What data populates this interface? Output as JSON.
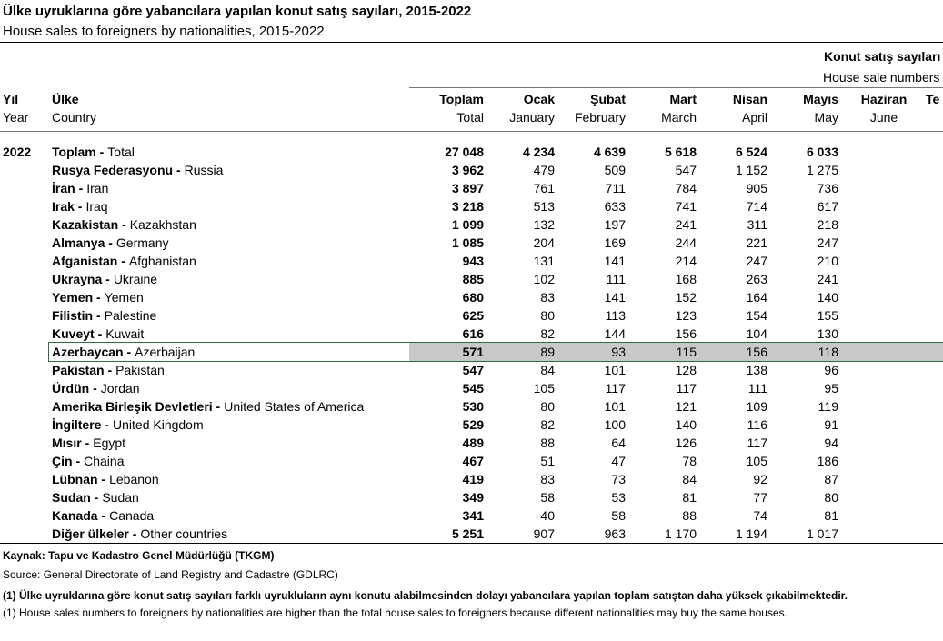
{
  "header": {
    "title": "Ülke uyruklarına göre yabancılara yapılan konut satış sayıları, 2015-2022",
    "subtitle": "House sales to foreigners by nationalities, 2015-2022",
    "group_tr": "Konut satış sayıları",
    "group_en": "House sale numbers"
  },
  "table": {
    "columns": [
      {
        "tr": "Yıl",
        "en": "Year"
      },
      {
        "tr": "Ülke",
        "en": "Country"
      },
      {
        "tr": "Toplam",
        "en": "Total"
      },
      {
        "tr": "Ocak",
        "en": "January"
      },
      {
        "tr": "Şubat",
        "en": "February"
      },
      {
        "tr": "Mart",
        "en": "March"
      },
      {
        "tr": "Nisan",
        "en": "April"
      },
      {
        "tr": "Mayıs",
        "en": "May"
      },
      {
        "tr": "Haziran",
        "en": "June"
      },
      {
        "tr": "Te"
      }
    ],
    "rows": [
      {
        "year": "2022",
        "tr": "Toplam -",
        "en": "Total",
        "cells": [
          "27 048",
          "4 234",
          "4 639",
          "5 618",
          "6 524",
          "6 033"
        ]
      },
      {
        "tr": "Rusya Federasyonu -",
        "en": "Russia",
        "cells": [
          "3 962",
          "479",
          "509",
          "547",
          "1 152",
          "1 275"
        ]
      },
      {
        "tr": "İran -",
        "en": "Iran",
        "cells": [
          "3 897",
          "761",
          "711",
          "784",
          "905",
          "736"
        ]
      },
      {
        "tr": "Irak -",
        "en": "Iraq",
        "cells": [
          "3 218",
          "513",
          "633",
          "741",
          "714",
          "617"
        ]
      },
      {
        "tr": "Kazakistan -",
        "en": "Kazakhstan",
        "cells": [
          "1 099",
          "132",
          "197",
          "241",
          "311",
          "218"
        ]
      },
      {
        "tr": "Almanya -",
        "en": "Germany",
        "cells": [
          "1 085",
          "204",
          "169",
          "244",
          "221",
          "247"
        ]
      },
      {
        "tr": "Afganistan -",
        "en": "Afghanistan",
        "cells": [
          "943",
          "131",
          "141",
          "214",
          "247",
          "210"
        ]
      },
      {
        "tr": "Ukrayna -",
        "en": "Ukraine",
        "cells": [
          "885",
          "102",
          "111",
          "168",
          "263",
          "241"
        ]
      },
      {
        "tr": "Yemen -",
        "en": "Yemen",
        "cells": [
          "680",
          "83",
          "141",
          "152",
          "164",
          "140"
        ]
      },
      {
        "tr": "Filistin -",
        "en": "Palestine",
        "cells": [
          "625",
          "80",
          "113",
          "123",
          "154",
          "155"
        ]
      },
      {
        "tr": "Kuveyt -",
        "en": "Kuwait",
        "cells": [
          "616",
          "82",
          "144",
          "156",
          "104",
          "130"
        ]
      },
      {
        "tr": "Azerbaycan -",
        "en": "Azerbaijan",
        "cells": [
          "571",
          "89",
          "93",
          "115",
          "156",
          "118"
        ]
      },
      {
        "tr": "Pakistan -",
        "en": "Pakistan",
        "cells": [
          "547",
          "84",
          "101",
          "128",
          "138",
          "96"
        ]
      },
      {
        "tr": "Ürdün -",
        "en": "Jordan",
        "cells": [
          "545",
          "105",
          "117",
          "117",
          "111",
          "95"
        ]
      },
      {
        "tr": "Amerika Birleşik Devletleri -",
        "en": "United States of America",
        "cells": [
          "530",
          "80",
          "101",
          "121",
          "109",
          "119"
        ]
      },
      {
        "tr": "İngiltere -",
        "en": "United Kingdom",
        "cells": [
          "529",
          "82",
          "100",
          "140",
          "116",
          "91"
        ]
      },
      {
        "tr": "Mısır -",
        "en": "Egypt",
        "cells": [
          "489",
          "88",
          "64",
          "126",
          "117",
          "94"
        ]
      },
      {
        "tr": "Çin -",
        "en": "Chaina",
        "cells": [
          "467",
          "51",
          "47",
          "78",
          "105",
          "186"
        ]
      },
      {
        "tr": "Lübnan -",
        "en": "Lebanon",
        "cells": [
          "419",
          "83",
          "73",
          "84",
          "92",
          "87"
        ]
      },
      {
        "tr": "Sudan -",
        "en": "Sudan",
        "cells": [
          "349",
          "58",
          "53",
          "81",
          "77",
          "80"
        ]
      },
      {
        "tr": "Kanada -",
        "en": "Canada",
        "cells": [
          "341",
          "40",
          "58",
          "88",
          "74",
          "81"
        ]
      },
      {
        "tr": "Diğer ülkeler -",
        "en": "Other countries",
        "cells": [
          "5 251",
          "907",
          "963",
          "1 170",
          "1 194",
          "1 017"
        ]
      }
    ]
  },
  "footer": {
    "source_tr": "Kaynak: Tapu ve Kadastro Genel Müdürlüğü (TKGM)",
    "source_en": "Source: General Directorate of Land Registry and Cadastre (GDLRC)",
    "note_tr": "(1) Ülke uyruklarına göre konut satış sayıları farklı uyrukluların aynı konutu alabilmesinden dolayı yabancılara yapılan toplam satıştan daha yüksek çıkabilmektedir.",
    "note_en": "(1) House sales numbers to foreigners by nationalities are higher than the total house sales to foreigners because different nationalities may buy the same houses."
  }
}
